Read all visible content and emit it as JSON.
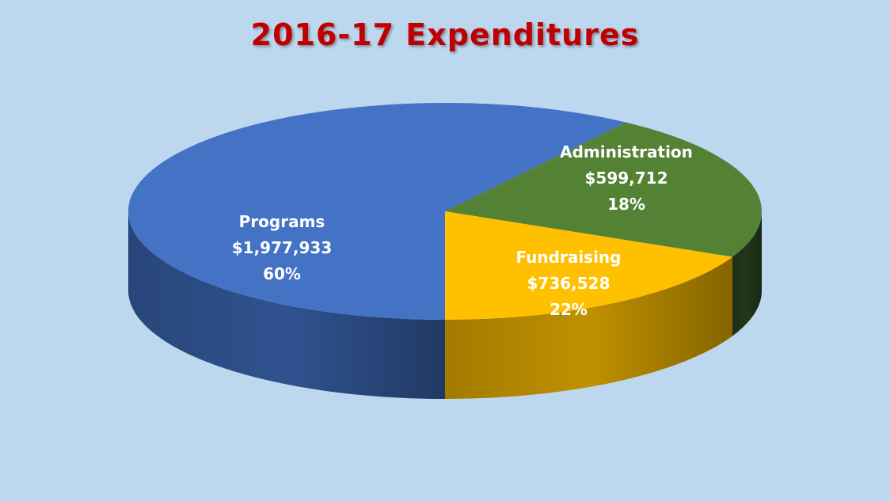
{
  "colors": {
    "background": "#bdd7ee",
    "title": "#c00000"
  },
  "chart_data": {
    "type": "pie",
    "title": "2016-17 Expenditures",
    "three_d": true,
    "slices": [
      {
        "key": "programs",
        "label": "Programs",
        "amount": "$1,977,933",
        "value": 1977933,
        "percent": "60%",
        "color": "#4472c4",
        "side_color": "#2f528f"
      },
      {
        "key": "administration",
        "label": "Administration",
        "amount": "$599,712",
        "value": 599712,
        "percent": "18%",
        "color": "#ffc000",
        "side_color": "#bf9000"
      },
      {
        "key": "fundraising",
        "label": "Fundraising",
        "amount": "$736,528",
        "value": 736528,
        "percent": "22%",
        "color": "#548235",
        "side_color": "#22371a"
      }
    ]
  }
}
